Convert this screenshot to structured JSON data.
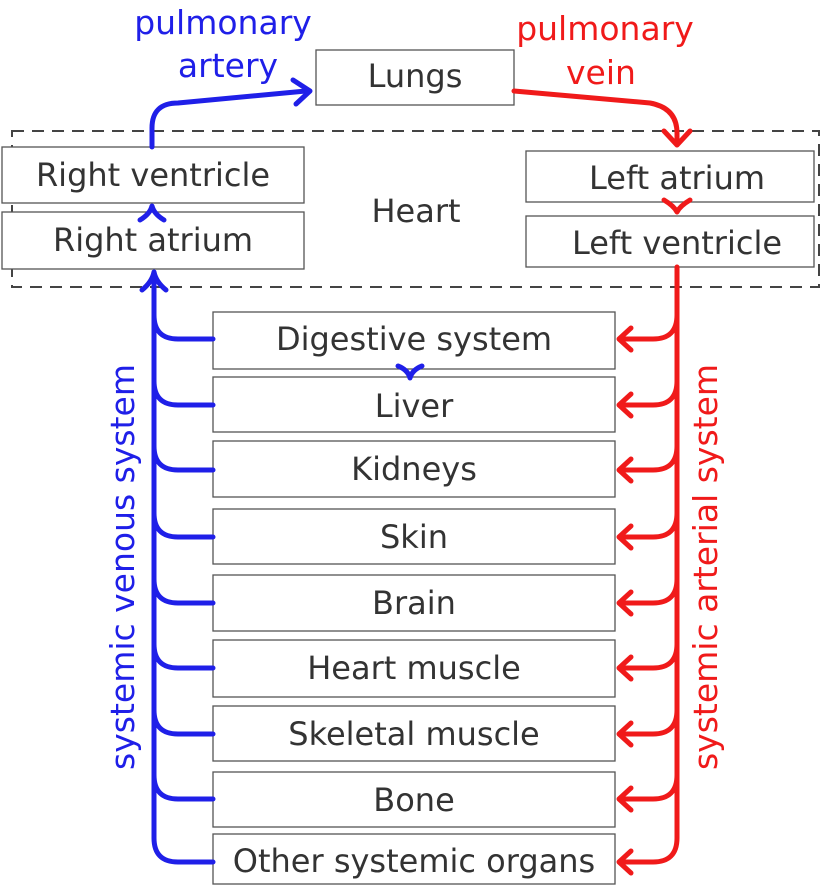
{
  "top": {
    "lungs": "Lungs",
    "pulmonary_artery": [
      "pulmonary",
      "artery"
    ],
    "pulmonary_vein": [
      "pulmonary",
      "vein"
    ]
  },
  "heart": {
    "label": "Heart",
    "right_ventricle": "Right ventricle",
    "right_atrium": "Right atrium",
    "left_atrium": "Left atrium",
    "left_ventricle": "Left ventricle"
  },
  "organs": [
    "Digestive system",
    "Liver",
    "Kidneys",
    "Skin",
    "Brain",
    "Heart muscle",
    "Skeletal muscle",
    "Bone",
    "Other systemic organs"
  ],
  "side_labels": {
    "venous": "systemic venous system",
    "arterial": "systemic arterial system"
  },
  "colors": {
    "venous": "#1f1fe8",
    "arterial": "#f01a1a"
  }
}
